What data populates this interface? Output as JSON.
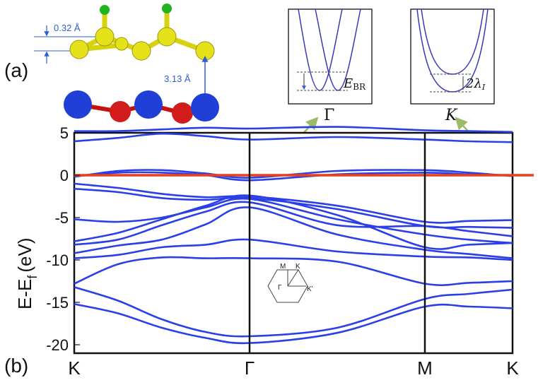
{
  "panel_labels": {
    "a": "(a)",
    "b": "(b)"
  },
  "structure": {
    "buckling": "0.32 Å",
    "interlayer_distance": "3.13 Å"
  },
  "inset_gamma": {
    "symmetry_point": "Γ",
    "gap_label_main": "E",
    "gap_label_sub": "BR"
  },
  "inset_k": {
    "symmetry_point": "K",
    "gap_label": "2λ",
    "gap_label_sub": "I"
  },
  "brillouin_zone": {
    "labels": [
      "M",
      "K",
      "Γ",
      "K'"
    ]
  },
  "colors": {
    "bands": "#2a3fe8",
    "fermi": "#e8401c",
    "arrow": "#9bba6a",
    "atoms_top": "#e6e21a",
    "atoms_bottom_a": "#1f3fd6",
    "atoms_bottom_b": "#d21c1c",
    "hydrogen": "#1fb51f"
  },
  "chart_data": {
    "type": "line",
    "ylabel": "E-E",
    "ylabel_sub": "f",
    "ylabel_unit": "(eV)",
    "ylim": [
      -21,
      5
    ],
    "yticks": [
      5,
      0,
      -5,
      -10,
      -15,
      -20
    ],
    "xticks": [
      "K",
      "Γ",
      "M",
      "K"
    ],
    "xtick_positions": [
      0,
      1,
      2,
      2.5
    ],
    "fermi_level": 0,
    "series": [
      {
        "x": [
          0,
          0.25,
          0.5,
          0.75,
          1,
          1.5,
          2,
          2.25,
          2.5
        ],
        "values": [
          4.0,
          4.4,
          4.9,
          4.6,
          4.2,
          4.5,
          4.2,
          4.0,
          3.9
        ]
      },
      {
        "x": [
          0,
          0.25,
          0.5,
          0.75,
          1,
          1.5,
          2,
          2.25,
          2.5
        ],
        "values": [
          5.2,
          5.2,
          5.4,
          5.6,
          5.5,
          5.7,
          5.3,
          5.2,
          5.1
        ]
      },
      {
        "x": [
          0,
          0.25,
          0.5,
          0.75,
          1,
          1.5,
          2,
          2.25,
          2.5
        ],
        "values": [
          -0.2,
          0.5,
          0.6,
          0.2,
          -0.3,
          0.5,
          0.6,
          0.3,
          -0.1
        ]
      },
      {
        "x": [
          0,
          0.25,
          0.5,
          0.75,
          1,
          1.5,
          2,
          2.25,
          2.5
        ],
        "values": [
          -0.1,
          0.3,
          0.3,
          0.0,
          -0.6,
          0.1,
          0.3,
          0.1,
          0.0
        ]
      },
      {
        "x": [
          0,
          0.25,
          0.5,
          0.75,
          1,
          1.5,
          2,
          2.25,
          2.5
        ],
        "values": [
          -1.0,
          -1.5,
          -2.2,
          -2.6,
          -2.5,
          -3.6,
          -5.5,
          -5.4,
          -5.3
        ]
      },
      {
        "x": [
          0,
          0.25,
          0.5,
          0.75,
          1,
          1.5,
          2,
          2.25,
          2.5
        ],
        "values": [
          -1.6,
          -2.0,
          -2.7,
          -2.9,
          -2.7,
          -4.0,
          -6.0,
          -6.1,
          -6.2
        ]
      },
      {
        "x": [
          0,
          0.25,
          0.5,
          0.75,
          1,
          1.5,
          2,
          2.25,
          2.5
        ],
        "values": [
          -5.2,
          -5.5,
          -5.0,
          -3.8,
          -2.8,
          -5.2,
          -7.0,
          -7.6,
          -8.0
        ]
      },
      {
        "x": [
          0,
          0.25,
          0.5,
          0.75,
          1,
          1.5,
          2,
          2.25,
          2.5
        ],
        "values": [
          -7.8,
          -6.8,
          -5.2,
          -3.6,
          -2.4,
          -4.7,
          -8.5,
          -8.2,
          -8.0
        ]
      },
      {
        "x": [
          0,
          0.25,
          0.5,
          0.75,
          1,
          1.5,
          2,
          2.25,
          2.5
        ],
        "values": [
          -8.2,
          -7.6,
          -5.9,
          -4.3,
          -3.2,
          -5.9,
          -6.0,
          -6.6,
          -7.2
        ]
      },
      {
        "x": [
          0,
          0.25,
          0.5,
          0.75,
          1,
          1.5,
          2,
          2.25,
          2.5
        ],
        "values": [
          -9.2,
          -8.3,
          -7.6,
          -5.8,
          -3.8,
          -7.0,
          -8.8,
          -9.3,
          -9.8
        ]
      },
      {
        "x": [
          0,
          0.25,
          0.5,
          0.75,
          1,
          1.5,
          2,
          2.25,
          2.5
        ],
        "values": [
          -9.8,
          -9.4,
          -8.5,
          -8.2,
          -7.6,
          -9.0,
          -9.6,
          -9.7,
          -10.0
        ]
      },
      {
        "x": [
          0,
          0.25,
          0.5,
          0.75,
          1,
          1.5,
          2,
          2.25,
          2.5
        ],
        "values": [
          -12.8,
          -10.5,
          -9.7,
          -9.8,
          -9.8,
          -10.2,
          -12.8,
          -12.7,
          -12.5
        ]
      },
      {
        "x": [
          0,
          0.25,
          0.5,
          0.75,
          1,
          1.5,
          2,
          2.25,
          2.5
        ],
        "values": [
          -13.2,
          -14.8,
          -17.0,
          -18.5,
          -19.0,
          -18.0,
          -14.6,
          -14.0,
          -13.5
        ]
      },
      {
        "x": [
          0,
          0.25,
          0.5,
          0.75,
          1,
          1.5,
          2,
          2.25,
          2.5
        ],
        "values": [
          -15.2,
          -16.3,
          -18.0,
          -19.2,
          -19.8,
          -18.6,
          -15.5,
          -15.5,
          -15.7
        ]
      }
    ]
  }
}
